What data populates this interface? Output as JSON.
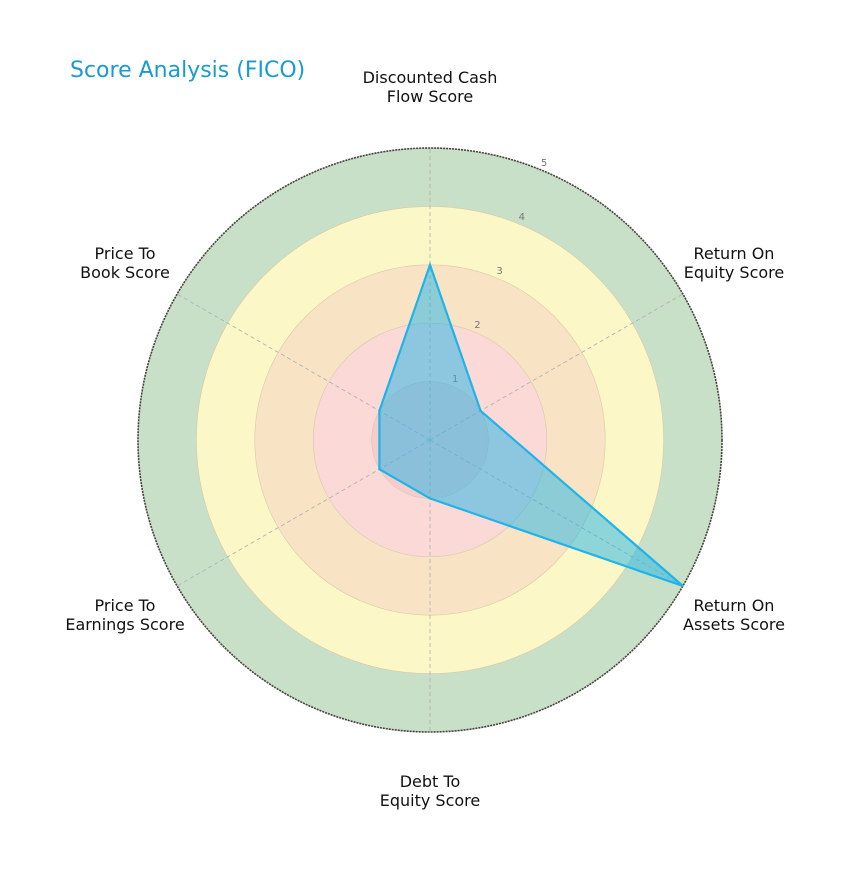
{
  "title": "Score Analysis (FICO)",
  "chart_data": {
    "type": "radar",
    "title": "Score Analysis (FICO)",
    "categories": [
      "Discounted Cash\nFlow Score",
      "Return On\nEquity Score",
      "Return On\nAssets Score",
      "Debt To\nEquity Score",
      "Price To\nEarnings Score",
      "Price To\nBook Score"
    ],
    "series": [
      {
        "name": "FICO",
        "values": [
          3,
          1,
          5,
          1,
          1,
          1
        ],
        "color": "#1fb4e8"
      }
    ],
    "rlim": [
      0,
      5
    ],
    "rticks": [
      "1",
      "2",
      "3",
      "4",
      "5"
    ],
    "bands": [
      {
        "from": 0,
        "to": 1,
        "color": "#f5cccc"
      },
      {
        "from": 1,
        "to": 2,
        "color": "#fad9d6"
      },
      {
        "from": 2,
        "to": 3,
        "color": "#f8e4c4"
      },
      {
        "from": 3,
        "to": 4,
        "color": "#fbf7c6"
      },
      {
        "from": 4,
        "to": 5,
        "color": "#c8e0c7"
      }
    ],
    "grid": true
  },
  "labels": {
    "dcf": "Discounted Cash\nFlow Score",
    "roe": "Return On\nEquity Score",
    "roa": "Return On\nAssets Score",
    "de": "Debt To\nEquity Score",
    "pe": "Price To\nEarnings Score",
    "pb": "Price To\nBook Score"
  }
}
